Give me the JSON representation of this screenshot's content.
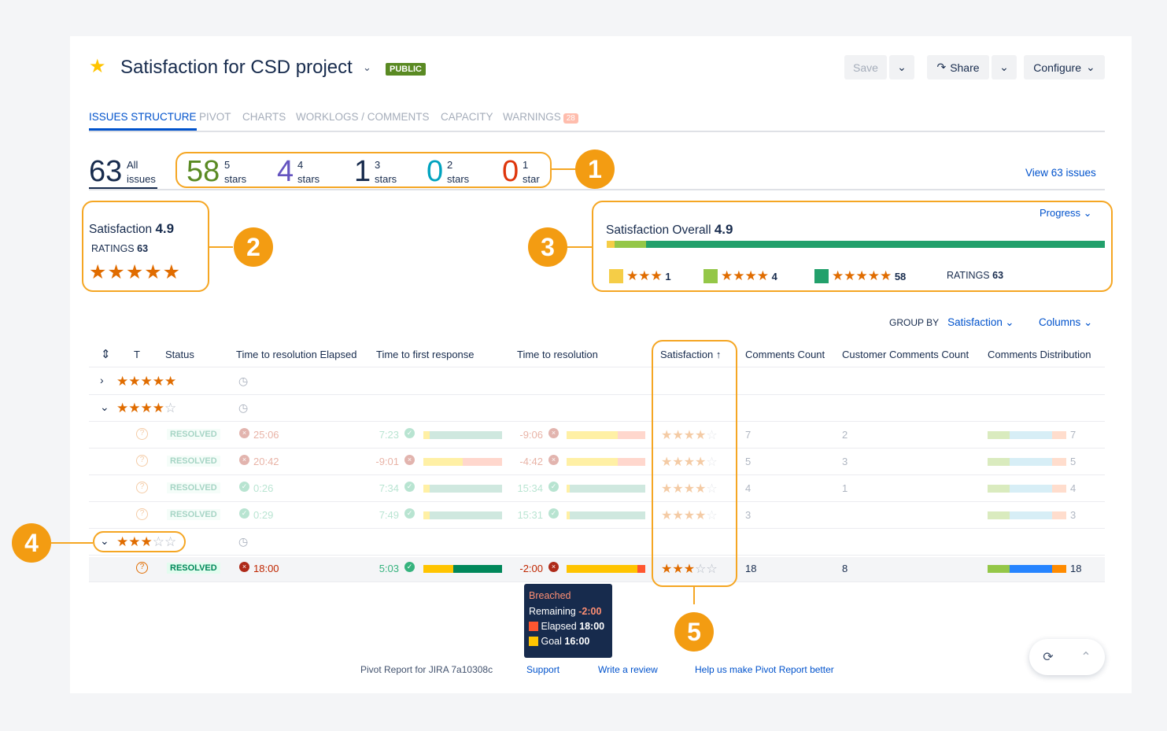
{
  "header": {
    "title": "Satisfaction for CSD project",
    "badge": "PUBLIC",
    "save": "Save",
    "share": "Share",
    "configure": "Configure"
  },
  "tabs": [
    "ISSUES STRUCTURE",
    "PIVOT",
    "CHARTS",
    "WORKLOGS / COMMENTS",
    "CAPACITY",
    "WARNINGS"
  ],
  "warnings_count": "28",
  "summary": {
    "all_count": "63",
    "all_label1": "All",
    "all_label2": "issues",
    "groups": [
      {
        "count": "58",
        "n": "5",
        "unit": "stars",
        "color": "#5a8a23"
      },
      {
        "count": "4",
        "n": "4",
        "unit": "stars",
        "color": "#6554c0"
      },
      {
        "count": "1",
        "n": "3",
        "unit": "stars",
        "color": "#172b4d"
      },
      {
        "count": "0",
        "n": "2",
        "unit": "stars",
        "color": "#00a3bf"
      },
      {
        "count": "0",
        "n": "1",
        "unit": "star",
        "color": "#de350b"
      }
    ],
    "view_link": "View 63 issues"
  },
  "satisfaction": {
    "label": "Satisfaction",
    "value": "4.9",
    "ratings_label": "RATINGS",
    "ratings": "63",
    "stars": 5
  },
  "overall": {
    "label": "Satisfaction Overall",
    "value": "4.9",
    "progress_label": "Progress",
    "segments": [
      {
        "fraction": 0.016,
        "color": "#f5cd47"
      },
      {
        "fraction": 0.063,
        "color": "#94c748"
      },
      {
        "fraction": 0.921,
        "color": "#22a06b"
      }
    ],
    "legend": [
      {
        "color": "#f5cd47",
        "stars": 3,
        "count": "1"
      },
      {
        "color": "#94c748",
        "stars": 4,
        "count": "4"
      },
      {
        "color": "#22a06b",
        "stars": 5,
        "count": "58"
      }
    ],
    "ratings_label": "RATINGS",
    "ratings": "63"
  },
  "grouping": {
    "group_by_label": "GROUP BY",
    "group_by": "Satisfaction",
    "columns": "Columns"
  },
  "table": {
    "headers": [
      "T",
      "Status",
      "Time to resolution Elapsed",
      "Time to first response",
      "Time to resolution",
      "Satisfaction",
      "Comments Count",
      "Customer Comments Count",
      "Comments Distribution"
    ],
    "groups": [
      {
        "stars": 5,
        "expanded": false
      },
      {
        "stars": 4,
        "expanded": true
      },
      {
        "stars": 3,
        "expanded": true
      }
    ],
    "rows": [
      {
        "status": "RESOLVED",
        "elapsed": "25:06",
        "elapsed_ok": false,
        "first": "7:23",
        "first_ok": true,
        "res": "-9:06",
        "res_ok": false,
        "stars": 4,
        "comments": "7",
        "customer": "2",
        "dist": "7",
        "faded": true
      },
      {
        "status": "RESOLVED",
        "elapsed": "20:42",
        "elapsed_ok": false,
        "first": "-9:01",
        "first_ok": false,
        "res": "-4:42",
        "res_ok": false,
        "stars": 4,
        "comments": "5",
        "customer": "3",
        "dist": "5",
        "faded": true
      },
      {
        "status": "RESOLVED",
        "elapsed": "0:26",
        "elapsed_ok": true,
        "first": "7:34",
        "first_ok": true,
        "res": "15:34",
        "res_ok": true,
        "stars": 4,
        "comments": "4",
        "customer": "1",
        "dist": "4",
        "faded": true
      },
      {
        "status": "RESOLVED",
        "elapsed": "0:29",
        "elapsed_ok": true,
        "first": "7:49",
        "first_ok": true,
        "res": "15:31",
        "res_ok": true,
        "stars": 4,
        "comments": "3",
        "customer": "",
        "dist": "3",
        "faded": true
      },
      {
        "status": "RESOLVED",
        "elapsed": "18:00",
        "elapsed_ok": false,
        "first": "5:03",
        "first_ok": true,
        "res": "-2:00",
        "res_ok": false,
        "stars": 3,
        "comments": "18",
        "customer": "8",
        "dist": "18",
        "faded": false
      }
    ]
  },
  "tooltip": {
    "title": "Breached",
    "remaining_label": "Remaining",
    "remaining": "-2:00",
    "elapsed_label": "Elapsed",
    "elapsed": "18:00",
    "goal_label": "Goal",
    "goal": "16:00"
  },
  "footer": {
    "version": "Pivot Report for JIRA 7a10308c",
    "support": "Support",
    "review": "Write a review",
    "help": "Help us make Pivot Report better"
  },
  "callouts": [
    "1",
    "2",
    "3",
    "4",
    "5"
  ],
  "colors": {
    "accent": "#0052cc",
    "star": "#e06c00",
    "callout": "#f39c12"
  }
}
